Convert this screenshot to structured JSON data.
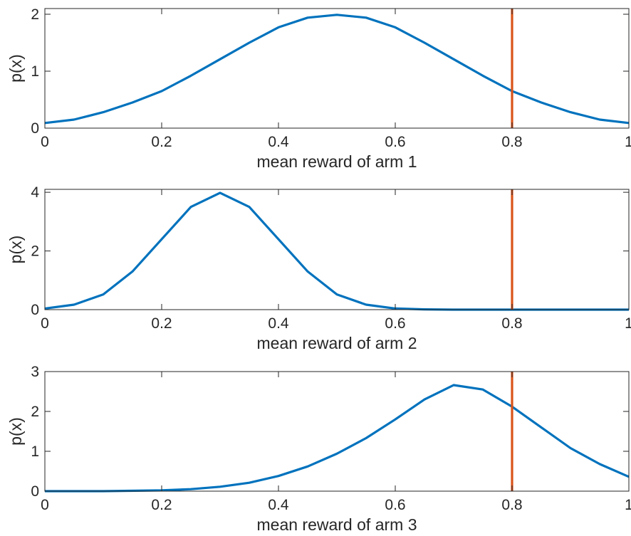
{
  "colors": {
    "curve": "#0072BD",
    "marker": "#D95319",
    "axes": "#262626"
  },
  "chart_data": [
    {
      "type": "line",
      "xlabel": "mean reward of arm 1",
      "ylabel": "p(x)",
      "xlim": [
        0,
        1
      ],
      "ylim": [
        0,
        2.1
      ],
      "xticks": [
        0,
        0.2,
        0.4,
        0.6,
        0.8,
        1
      ],
      "xtick_labels": [
        "0",
        "0.2",
        "0.4",
        "0.6",
        "0.8",
        "1"
      ],
      "yticks": [
        0,
        1,
        2
      ],
      "ytick_labels": [
        "0",
        "1",
        "2"
      ],
      "series": [
        {
          "x": [
            0,
            0.05,
            0.1,
            0.15,
            0.2,
            0.25,
            0.3,
            0.35,
            0.4,
            0.45,
            0.5,
            0.55,
            0.6,
            0.65,
            0.7,
            0.75,
            0.8,
            0.85,
            0.9,
            0.95,
            1
          ],
          "y": [
            0.09,
            0.15,
            0.28,
            0.45,
            0.65,
            0.92,
            1.21,
            1.5,
            1.77,
            1.94,
            1.99,
            1.94,
            1.77,
            1.5,
            1.21,
            0.92,
            0.65,
            0.45,
            0.28,
            0.15,
            0.09
          ]
        }
      ],
      "vline": 0.8,
      "grid": false
    },
    {
      "type": "line",
      "xlabel": "mean reward of arm 2",
      "ylabel": "p(x)",
      "xlim": [
        0,
        1
      ],
      "ylim": [
        0,
        4.1
      ],
      "xticks": [
        0,
        0.2,
        0.4,
        0.6,
        0.8,
        1
      ],
      "xtick_labels": [
        "0",
        "0.2",
        "0.4",
        "0.6",
        "0.8",
        "1"
      ],
      "yticks": [
        0,
        2,
        4
      ],
      "ytick_labels": [
        "0",
        "2",
        "4"
      ],
      "series": [
        {
          "x": [
            0,
            0.05,
            0.1,
            0.15,
            0.2,
            0.25,
            0.3,
            0.35,
            0.4,
            0.45,
            0.5,
            0.55,
            0.6,
            0.65,
            0.7,
            0.75,
            0.8,
            0.9,
            1
          ],
          "y": [
            0.04,
            0.17,
            0.52,
            1.3,
            2.4,
            3.5,
            3.98,
            3.5,
            2.4,
            1.3,
            0.52,
            0.17,
            0.04,
            0.01,
            0,
            0,
            0,
            0,
            0
          ]
        }
      ],
      "vline": 0.8,
      "grid": false
    },
    {
      "type": "line",
      "xlabel": "mean reward of arm 3",
      "ylabel": "p(x)",
      "xlim": [
        0,
        1
      ],
      "ylim": [
        0,
        3
      ],
      "xticks": [
        0,
        0.2,
        0.4,
        0.6,
        0.8,
        1
      ],
      "xtick_labels": [
        "0",
        "0.2",
        "0.4",
        "0.6",
        "0.8",
        "1"
      ],
      "yticks": [
        0,
        1,
        2,
        3
      ],
      "ytick_labels": [
        "0",
        "1",
        "2",
        "3"
      ],
      "series": [
        {
          "x": [
            0,
            0.1,
            0.2,
            0.25,
            0.3,
            0.35,
            0.4,
            0.45,
            0.5,
            0.55,
            0.6,
            0.65,
            0.7,
            0.75,
            0.8,
            0.85,
            0.9,
            0.95,
            1
          ],
          "y": [
            0,
            0,
            0.02,
            0.05,
            0.11,
            0.21,
            0.38,
            0.62,
            0.94,
            1.33,
            1.8,
            2.3,
            2.66,
            2.55,
            2.12,
            1.6,
            1.08,
            0.68,
            0.36
          ]
        }
      ],
      "vline": 0.8,
      "grid": false
    }
  ]
}
